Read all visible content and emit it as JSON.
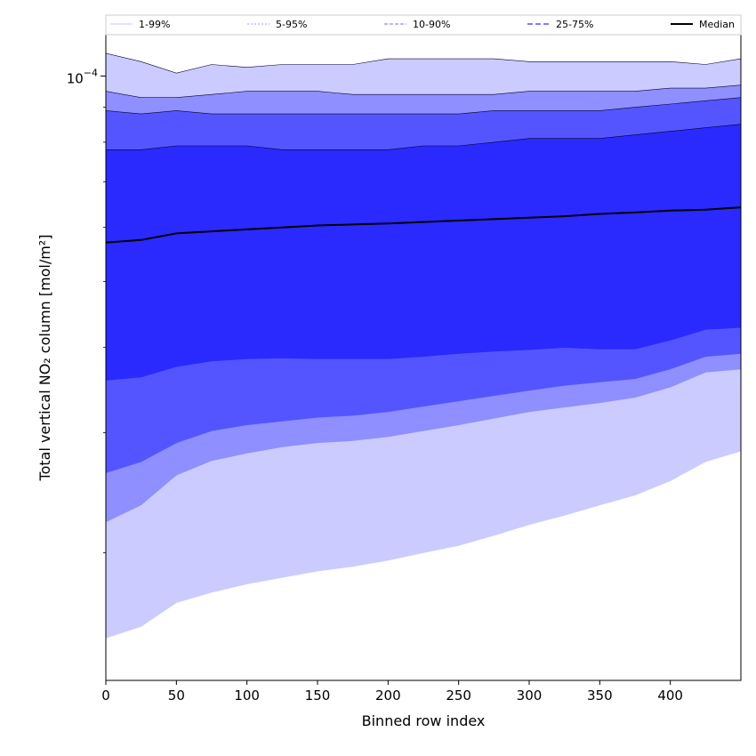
{
  "chart_data": {
    "type": "area",
    "xlabel": "Binned row index",
    "ylabel": "Total vertical NO₂ column [mol/m²]",
    "xlim": [
      0,
      450
    ],
    "ylim": [
      1.3e-05,
      0.000115
    ],
    "y_scale": "log",
    "x_ticks": [
      0,
      50,
      100,
      150,
      200,
      250,
      300,
      350,
      400
    ],
    "x_tick_labels": [
      "0",
      "50",
      "100",
      "150",
      "200",
      "250",
      "300",
      "350",
      "400"
    ],
    "y_major_tick": 0.0001,
    "y_major_tick_label": "10",
    "y_major_tick_exponent": "−4",
    "y_minor_ticks": [
      2e-05,
      3e-05,
      4e-05,
      5e-05,
      6e-05,
      7e-05,
      8e-05,
      9e-05
    ],
    "legend": {
      "placement": "top, above plot, single row",
      "entries": [
        "1-99%",
        "5-95%",
        "10-90%",
        "25-75%",
        "Median"
      ]
    },
    "x": [
      0,
      25,
      50,
      75,
      100,
      125,
      150,
      175,
      200,
      225,
      250,
      275,
      300,
      325,
      350,
      375,
      400,
      425,
      450
    ],
    "bands": [
      {
        "name": "1-99%",
        "color": "#cccbff",
        "lower": [
          1.5e-05,
          1.56e-05,
          1.69e-05,
          1.75e-05,
          1.8e-05,
          1.84e-05,
          1.88e-05,
          1.91e-05,
          1.95e-05,
          2e-05,
          2.05e-05,
          2.12e-05,
          2.2e-05,
          2.27e-05,
          2.35e-05,
          2.43e-05,
          2.55e-05,
          2.72e-05,
          2.82e-05
        ],
        "upper": [
          0.000108,
          0.000105,
          0.000101,
          0.000104,
          0.000103,
          0.000104,
          0.000104,
          0.000104,
          0.000106,
          0.000106,
          0.000106,
          0.000106,
          0.000105,
          0.000105,
          0.000105,
          0.000105,
          0.000105,
          0.000104,
          0.000106
        ]
      },
      {
        "name": "5-95%",
        "color": "#8f8fff",
        "lower": [
          2.22e-05,
          2.35e-05,
          2.6e-05,
          2.73e-05,
          2.8e-05,
          2.86e-05,
          2.9e-05,
          2.92e-05,
          2.96e-05,
          3.02e-05,
          3.08e-05,
          3.15e-05,
          3.22e-05,
          3.27e-05,
          3.32e-05,
          3.38e-05,
          3.5e-05,
          3.68e-05,
          3.72e-05
        ],
        "upper": [
          9.5e-05,
          9.3e-05,
          9.3e-05,
          9.4e-05,
          9.5e-05,
          9.5e-05,
          9.5e-05,
          9.4e-05,
          9.4e-05,
          9.4e-05,
          9.4e-05,
          9.4e-05,
          9.5e-05,
          9.5e-05,
          9.5e-05,
          9.5e-05,
          9.6e-05,
          9.6e-05,
          9.7e-05
        ]
      },
      {
        "name": "10-90%",
        "color": "#5555ff",
        "lower": [
          2.62e-05,
          2.72e-05,
          2.9e-05,
          3.02e-05,
          3.08e-05,
          3.12e-05,
          3.16e-05,
          3.18e-05,
          3.22e-05,
          3.28e-05,
          3.34e-05,
          3.4e-05,
          3.46e-05,
          3.52e-05,
          3.56e-05,
          3.6e-05,
          3.72e-05,
          3.88e-05,
          3.92e-05
        ],
        "upper": [
          8.9e-05,
          8.8e-05,
          8.9e-05,
          8.8e-05,
          8.8e-05,
          8.8e-05,
          8.8e-05,
          8.8e-05,
          8.8e-05,
          8.8e-05,
          8.8e-05,
          8.9e-05,
          8.9e-05,
          8.9e-05,
          8.9e-05,
          9e-05,
          9.1e-05,
          9.2e-05,
          9.3e-05
        ]
      },
      {
        "name": "25-75%",
        "color": "#2a2aff",
        "lower": [
          3.58e-05,
          3.62e-05,
          3.75e-05,
          3.82e-05,
          3.85e-05,
          3.86e-05,
          3.85e-05,
          3.85e-05,
          3.85e-05,
          3.88e-05,
          3.92e-05,
          3.95e-05,
          3.97e-05,
          4e-05,
          3.98e-05,
          3.98e-05,
          4.1e-05,
          4.25e-05,
          4.28e-05
        ],
        "upper": [
          7.8e-05,
          7.8e-05,
          7.9e-05,
          7.9e-05,
          7.9e-05,
          7.8e-05,
          7.8e-05,
          7.8e-05,
          7.8e-05,
          7.9e-05,
          7.9e-05,
          8e-05,
          8.1e-05,
          8.1e-05,
          8.1e-05,
          8.2e-05,
          8.3e-05,
          8.4e-05,
          8.5e-05
        ]
      }
    ],
    "median": {
      "name": "Median",
      "color": "#000000",
      "values": [
        5.7e-05,
        5.75e-05,
        5.88e-05,
        5.92e-05,
        5.96e-05,
        6e-05,
        6.04e-05,
        6.06e-05,
        6.08e-05,
        6.11e-05,
        6.14e-05,
        6.17e-05,
        6.2e-05,
        6.23e-05,
        6.28e-05,
        6.31e-05,
        6.35e-05,
        6.37e-05,
        6.42e-05
      ]
    }
  }
}
